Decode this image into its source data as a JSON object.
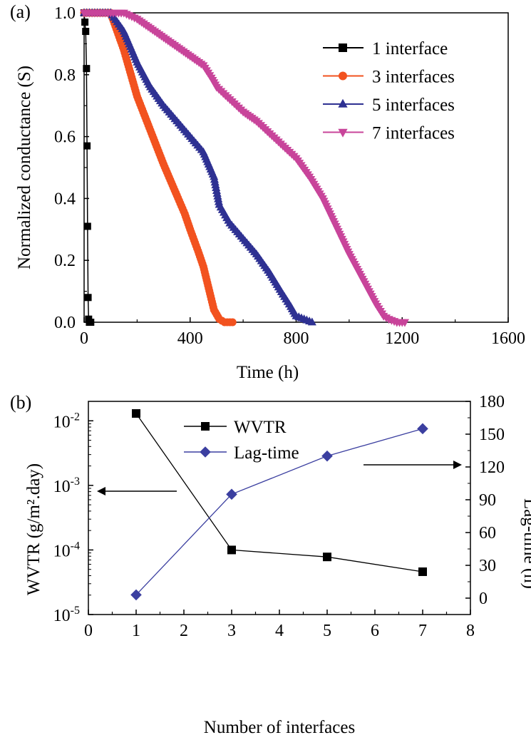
{
  "panels": {
    "a_label": "(a)",
    "b_label": "(b)"
  },
  "colors": {
    "s1": "#000000",
    "s3": "#f2521f",
    "s5": "#2e3192",
    "s7": "#c8449a",
    "wvtr": "#000000",
    "lag": "#3b3fa0"
  },
  "chart_data": [
    {
      "type": "line",
      "panel": "(a)",
      "xlabel": "Time (h)",
      "ylabel": "Normalized conductance (S)",
      "xlim": [
        0,
        1600
      ],
      "ylim": [
        0,
        1.0
      ],
      "xticks": [
        "0",
        "400",
        "800",
        "1200",
        "1600"
      ],
      "yticks": [
        "0.0",
        "0.2",
        "0.4",
        "0.6",
        "0.8",
        "1.0"
      ],
      "legend_position": "top-right",
      "series": [
        {
          "name": "1 interface",
          "marker": "square",
          "color": "#000000",
          "x": [
            0,
            3,
            6,
            9,
            11,
            13,
            15,
            17,
            20,
            25
          ],
          "y": [
            1.0,
            0.97,
            0.94,
            0.82,
            0.57,
            0.31,
            0.08,
            0.01,
            0.0,
            0.0
          ]
        },
        {
          "name": "3 interfaces",
          "marker": "circle",
          "color": "#f2521f",
          "x": [
            0,
            50,
            100,
            150,
            200,
            250,
            300,
            350,
            380,
            400,
            430,
            450,
            470,
            490,
            510,
            530,
            560
          ],
          "y": [
            1.0,
            1.0,
            1.0,
            0.88,
            0.73,
            0.62,
            0.51,
            0.41,
            0.35,
            0.3,
            0.23,
            0.18,
            0.11,
            0.04,
            0.01,
            0.0,
            0.0
          ]
        },
        {
          "name": "5 interfaces",
          "marker": "triangle-up",
          "color": "#2e3192",
          "x": [
            0,
            50,
            100,
            150,
            200,
            250,
            300,
            350,
            400,
            450,
            470,
            490,
            510,
            550,
            600,
            650,
            700,
            750,
            780,
            800,
            830,
            860
          ],
          "y": [
            1.0,
            1.0,
            1.0,
            0.94,
            0.84,
            0.76,
            0.7,
            0.65,
            0.6,
            0.55,
            0.51,
            0.47,
            0.38,
            0.32,
            0.27,
            0.22,
            0.16,
            0.09,
            0.05,
            0.02,
            0.01,
            0.0
          ]
        },
        {
          "name": "7 interfaces",
          "marker": "triangle-down",
          "color": "#c8449a",
          "x": [
            0,
            50,
            100,
            150,
            200,
            250,
            300,
            350,
            400,
            450,
            480,
            500,
            550,
            600,
            650,
            700,
            750,
            800,
            850,
            900,
            950,
            1000,
            1050,
            1100,
            1130,
            1150,
            1180,
            1210
          ],
          "y": [
            1.0,
            1.0,
            1.0,
            1.0,
            0.98,
            0.95,
            0.92,
            0.89,
            0.86,
            0.83,
            0.79,
            0.76,
            0.72,
            0.68,
            0.65,
            0.61,
            0.57,
            0.53,
            0.47,
            0.4,
            0.31,
            0.22,
            0.14,
            0.06,
            0.02,
            0.01,
            0.0,
            0.0
          ]
        }
      ]
    },
    {
      "type": "line",
      "panel": "(b)",
      "xlabel": "Number of interfaces",
      "ylabel_left": "WVTR (g/m².day)",
      "ylabel_right": "Lag-time (h)",
      "xlim": [
        0,
        8
      ],
      "xticks": [
        "0",
        "1",
        "2",
        "3",
        "4",
        "5",
        "6",
        "7",
        "8"
      ],
      "ylim_left": [
        1e-05,
        0.02
      ],
      "yscale_left": "log",
      "yticks_left": [
        "10",
        "10",
        "10",
        "10"
      ],
      "yticks_left_exp": [
        "-2",
        "-3",
        "-4",
        "-5"
      ],
      "ylim_right": [
        -15,
        180
      ],
      "yticks_right": [
        "0",
        "30",
        "60",
        "90",
        "120",
        "150",
        "180"
      ],
      "legend_position": "top-center",
      "series": [
        {
          "name": "WVTR",
          "marker": "square",
          "axis": "left",
          "color": "#000000",
          "x": [
            1,
            3,
            5,
            7
          ],
          "y": [
            0.013,
            0.0001,
            7.8e-05,
            4.6e-05
          ]
        },
        {
          "name": "Lag-time",
          "marker": "diamond",
          "axis": "right",
          "color": "#3b3fa0",
          "x": [
            1,
            3,
            5,
            7
          ],
          "y": [
            3,
            95,
            130,
            155
          ]
        }
      ]
    }
  ]
}
